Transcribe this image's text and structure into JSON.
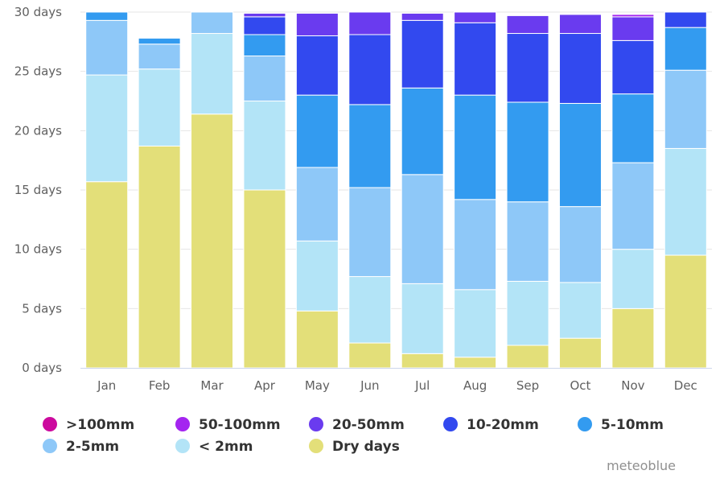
{
  "chart_data": {
    "type": "bar",
    "stacked": true,
    "categories": [
      "Jan",
      "Feb",
      "Mar",
      "Apr",
      "May",
      "Jun",
      "Jul",
      "Aug",
      "Sep",
      "Oct",
      "Nov",
      "Dec"
    ],
    "ylim": [
      0,
      30
    ],
    "yticks": [
      0,
      5,
      10,
      15,
      20,
      25,
      30
    ],
    "ytick_suffix": " days",
    "grid": "horizontal",
    "legend_position": "bottom",
    "series": [
      {
        "name": "Dry days",
        "color": "#e3df79",
        "values": [
          15.7,
          18.7,
          21.4,
          15.0,
          4.8,
          2.1,
          1.2,
          0.9,
          1.9,
          2.5,
          5.0,
          9.5
        ]
      },
      {
        "name": "< 2mm",
        "color": "#b3e4f7",
        "values": [
          9.0,
          6.5,
          6.8,
          7.5,
          5.9,
          5.6,
          5.9,
          5.7,
          5.4,
          4.7,
          5.0,
          9.0
        ]
      },
      {
        "name": "2-5mm",
        "color": "#8ec8f8",
        "values": [
          4.6,
          2.1,
          1.8,
          3.8,
          6.2,
          7.5,
          9.2,
          7.6,
          6.7,
          6.4,
          7.3,
          6.6
        ]
      },
      {
        "name": "5-10mm",
        "color": "#339bf0",
        "values": [
          0.8,
          0.5,
          0.0,
          1.8,
          6.1,
          7.0,
          7.3,
          8.8,
          8.4,
          8.7,
          5.8,
          3.6
        ]
      },
      {
        "name": "10-20mm",
        "color": "#3249ef",
        "values": [
          0.0,
          0.0,
          0.0,
          1.5,
          5.0,
          5.9,
          5.7,
          6.1,
          5.8,
          5.9,
          4.5,
          1.4
        ]
      },
      {
        "name": "20-50mm",
        "color": "#6a3bef",
        "values": [
          0.0,
          0.0,
          0.0,
          0.3,
          1.9,
          1.9,
          0.6,
          0.9,
          1.5,
          1.6,
          2.0,
          0.0
        ]
      },
      {
        "name": "50-100mm",
        "color": "#a425f0",
        "values": [
          0.0,
          0.0,
          0.0,
          0.0,
          0.0,
          0.0,
          0.0,
          0.0,
          0.0,
          0.0,
          0.2,
          0.0
        ]
      },
      {
        "name": ">100mm",
        "color": "#cc0a9e",
        "values": [
          0.0,
          0.0,
          0.0,
          0.0,
          0.0,
          0.0,
          0.0,
          0.0,
          0.0,
          0.0,
          0.0,
          0.0
        ]
      }
    ],
    "legend_order": [
      ">100mm",
      "50-100mm",
      "20-50mm",
      "10-20mm",
      "5-10mm",
      "2-5mm",
      "< 2mm",
      "Dry days"
    ]
  },
  "legend": {
    "items": [
      {
        "label": ">100mm",
        "color": "#cc0a9e"
      },
      {
        "label": "50-100mm",
        "color": "#a425f0"
      },
      {
        "label": "20-50mm",
        "color": "#6a3bef"
      },
      {
        "label": "10-20mm",
        "color": "#3249ef"
      },
      {
        "label": "5-10mm",
        "color": "#339bf0"
      },
      {
        "label": "2-5mm",
        "color": "#8ec8f8"
      },
      {
        "label": "< 2mm",
        "color": "#b3e4f7"
      },
      {
        "label": "Dry days",
        "color": "#e3df79"
      }
    ]
  },
  "credits": {
    "text": "meteoblue"
  },
  "colors": {
    "grid": "#e6e6e6",
    "axis_line": "#ccd6eb",
    "tick_text": "#606060",
    "legend_text": "#333333",
    "credits_text": "#909090"
  }
}
